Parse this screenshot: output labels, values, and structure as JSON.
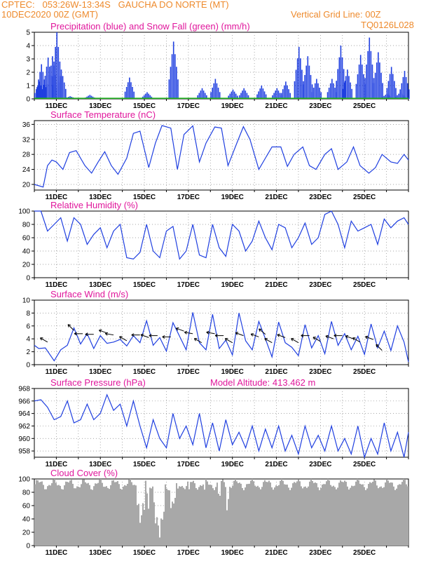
{
  "header": {
    "line1_left": "CPTEC:   053:26W-13:34S   GAUCHA DO NORTE (MT)",
    "line2_left": "10DEC2020 00Z (GMT)",
    "line2_right": "Vertical Grid Line: 00Z",
    "line3_right": "TQ0126L028"
  },
  "chart_data": [
    {
      "type": "bar",
      "title": "Precipitation (blue) and Snow Fall (green) (mm/h)",
      "ylim": [
        0,
        5
      ],
      "yticks": [
        "0",
        "1",
        "2",
        "3",
        "4",
        "5"
      ],
      "xticks": [
        "11DEC",
        "13DEC",
        "15DEC",
        "17DEC",
        "19DEC",
        "21DEC",
        "23DEC",
        "25DEC"
      ],
      "series": [
        {
          "name": "Precipitation",
          "color": "#1f3fe0",
          "bursts": [
            [
              0.2,
              1.3
            ],
            [
              0.3,
              2.6
            ],
            [
              0.6,
              3.1
            ],
            [
              0.8,
              3.2
            ],
            [
              1.0,
              5.0
            ],
            [
              1.2,
              2.2
            ],
            [
              1.6,
              0.2
            ],
            [
              2.5,
              0.3
            ],
            [
              4.3,
              1.6
            ],
            [
              5.1,
              0.5
            ],
            [
              6.3,
              4.3
            ],
            [
              7.6,
              0.8
            ],
            [
              8.2,
              1.5
            ],
            [
              9.0,
              0.7
            ],
            [
              9.5,
              0.8
            ],
            [
              10.3,
              1.0
            ],
            [
              11.0,
              0.8
            ],
            [
              11.4,
              1.3
            ],
            [
              12.0,
              3.9
            ],
            [
              12.4,
              3.2
            ],
            [
              12.8,
              1.5
            ],
            [
              13.5,
              1.5
            ],
            [
              13.9,
              4.0
            ],
            [
              14.2,
              2.2
            ],
            [
              14.8,
              3.3
            ],
            [
              15.2,
              4.6
            ],
            [
              15.6,
              3.5
            ],
            [
              16.0,
              0.4
            ],
            [
              16.2,
              2.4
            ],
            [
              16.6,
              0.5
            ],
            [
              16.8,
              2.1
            ]
          ]
        },
        {
          "name": "Snow Fall",
          "color": "#22b022",
          "values": [
            0
          ]
        }
      ]
    },
    {
      "type": "line",
      "title": "Surface Temperature (nC)",
      "ylim": [
        18.5,
        37
      ],
      "yticks": [
        "20",
        "24",
        "28",
        "32",
        "36"
      ],
      "xticks": [
        "11DEC",
        "13DEC",
        "15DEC",
        "17DEC",
        "19DEC",
        "21DEC",
        "23DEC",
        "25DEC"
      ],
      "series": [
        {
          "name": "Temperature",
          "color": "#1f3fe0",
          "x": [
            0,
            0.4,
            0.6,
            0.8,
            1.0,
            1.3,
            1.6,
            1.9,
            2.3,
            2.6,
            2.9,
            3.2,
            3.5,
            3.8,
            4.2,
            4.5,
            4.8,
            5.2,
            5.5,
            5.8,
            6.2,
            6.5,
            6.8,
            7.2,
            7.5,
            7.8,
            8.2,
            8.5,
            8.8,
            9.2,
            9.5,
            9.8,
            10.2,
            10.5,
            10.8,
            11.2,
            11.5,
            11.8,
            12.2,
            12.5,
            12.8,
            13.2,
            13.5,
            13.8,
            14.2,
            14.5,
            14.8,
            15.2,
            15.5,
            15.8,
            16.2,
            16.5,
            16.8,
            17.0
          ],
          "y": [
            20,
            19.3,
            25,
            26.5,
            26,
            24,
            28.5,
            29,
            25,
            23,
            26,
            28.7,
            25,
            22.7,
            27,
            33.6,
            34.2,
            24.5,
            31,
            35.7,
            35,
            24,
            33.3,
            35.6,
            26,
            31,
            35.3,
            35,
            25,
            31,
            35.4,
            32,
            24,
            27,
            30,
            30,
            24.8,
            28,
            30,
            25,
            24,
            28,
            29.5,
            24,
            26,
            30,
            25,
            23,
            24.5,
            28,
            26,
            25.6,
            28,
            26.5
          ]
        }
      ]
    },
    {
      "type": "line",
      "title": "Relative Humidity (%)",
      "ylim": [
        0,
        100
      ],
      "yticks": [
        "0",
        "20",
        "40",
        "60",
        "80",
        "100"
      ],
      "xticks": [
        "11DEC",
        "13DEC",
        "15DEC",
        "17DEC",
        "19DEC",
        "21DEC",
        "23DEC",
        "25DEC"
      ],
      "series": [
        {
          "name": "Humidity",
          "color": "#1f3fe0",
          "x": [
            0,
            0.3,
            0.6,
            0.9,
            1.2,
            1.5,
            1.8,
            2.1,
            2.4,
            2.7,
            3.0,
            3.3,
            3.6,
            3.9,
            4.2,
            4.5,
            4.8,
            5.1,
            5.4,
            5.7,
            6.0,
            6.3,
            6.6,
            6.9,
            7.2,
            7.5,
            7.8,
            8.1,
            8.4,
            8.7,
            9.0,
            9.3,
            9.6,
            9.9,
            10.2,
            10.5,
            10.8,
            11.1,
            11.4,
            11.7,
            12.0,
            12.3,
            12.6,
            12.9,
            13.2,
            13.5,
            13.8,
            14.1,
            14.4,
            14.7,
            15.0,
            15.3,
            15.6,
            15.9,
            16.2,
            16.5,
            16.8,
            17.0
          ],
          "y": [
            100,
            100,
            70,
            80,
            90,
            55,
            90,
            80,
            50,
            65,
            75,
            45,
            70,
            80,
            30,
            28,
            38,
            80,
            40,
            30,
            70,
            77,
            28,
            40,
            80,
            34,
            30,
            80,
            45,
            32,
            80,
            70,
            40,
            55,
            85,
            60,
            42,
            80,
            75,
            45,
            60,
            82,
            50,
            60,
            95,
            100,
            80,
            45,
            85,
            70,
            75,
            80,
            50,
            88,
            75,
            85,
            90,
            80
          ]
        }
      ]
    },
    {
      "type": "line",
      "title": "Surface Wind (m/s)",
      "ylim": [
        0,
        10
      ],
      "yticks": [
        "0",
        "2",
        "4",
        "6",
        "8",
        "10"
      ],
      "xticks": [
        "11DEC",
        "13DEC",
        "15DEC",
        "17DEC",
        "19DEC",
        "21DEC",
        "23DEC",
        "25DEC"
      ],
      "series": [
        {
          "name": "Wind speed",
          "color": "#1f3fe0",
          "x": [
            0,
            0.2,
            0.5,
            0.9,
            1.2,
            1.5,
            1.8,
            2.1,
            2.4,
            2.7,
            3.0,
            3.3,
            3.6,
            3.9,
            4.2,
            4.5,
            4.8,
            5.1,
            5.4,
            5.7,
            6.0,
            6.3,
            6.6,
            6.9,
            7.2,
            7.5,
            7.8,
            8.1,
            8.4,
            8.7,
            9.0,
            9.3,
            9.6,
            9.9,
            10.2,
            10.5,
            10.8,
            11.1,
            11.4,
            11.7,
            12.0,
            12.3,
            12.6,
            12.9,
            13.2,
            13.5,
            13.8,
            14.1,
            14.4,
            14.7,
            15.0,
            15.3,
            15.6,
            15.9,
            16.2,
            16.5,
            16.8,
            17.0
          ],
          "y": [
            3,
            2.5,
            2.6,
            0.6,
            2.3,
            3,
            5.7,
            3.2,
            4.8,
            2.5,
            4.5,
            3.3,
            3.5,
            3.9,
            2.9,
            4.5,
            3.4,
            6.8,
            3,
            4.2,
            2.1,
            6.5,
            4.4,
            2.3,
            8.1,
            3.4,
            2.3,
            7.8,
            2.5,
            3.8,
            1.5,
            8,
            3.7,
            2.3,
            6.7,
            4,
            1.2,
            6.6,
            3.4,
            2.7,
            1.4,
            6.2,
            2.6,
            4.5,
            1.7,
            6.7,
            3,
            4.8,
            2.3,
            4.4,
            1.6,
            6.3,
            2.6,
            5.2,
            2.2,
            6,
            3.5,
            0.4
          ]
        }
      ],
      "arrows": [
        [
          0.6,
          3.5,
          210
        ],
        [
          1.8,
          5.3,
          225
        ],
        [
          2.2,
          4.8,
          180
        ],
        [
          2.7,
          4.7,
          180
        ],
        [
          3.3,
          4.9,
          200
        ],
        [
          3.6,
          4.6,
          190
        ],
        [
          4.2,
          3.7,
          210
        ],
        [
          4.8,
          4.6,
          180
        ],
        [
          5.2,
          4.2,
          200
        ],
        [
          5.6,
          4.5,
          180
        ],
        [
          6.2,
          4.3,
          180
        ],
        [
          6.8,
          5.2,
          200
        ],
        [
          7.2,
          4.8,
          190
        ],
        [
          7.6,
          3.4,
          210
        ],
        [
          8.2,
          4.8,
          190
        ],
        [
          8.6,
          4.5,
          180
        ],
        [
          9.0,
          3.4,
          210
        ],
        [
          9.5,
          4.5,
          200
        ],
        [
          10.2,
          4.3,
          200
        ],
        [
          10.5,
          4.7,
          220
        ],
        [
          10.8,
          3.4,
          210
        ],
        [
          11.4,
          4.2,
          200
        ],
        [
          12.0,
          3.4,
          210
        ],
        [
          12.5,
          4.5,
          180
        ],
        [
          13.0,
          3.6,
          210
        ],
        [
          13.6,
          4.0,
          200
        ],
        [
          14.0,
          4.5,
          180
        ],
        [
          14.5,
          4.0,
          200
        ],
        [
          14.8,
          3.5,
          210
        ],
        [
          15.4,
          3.9,
          200
        ],
        [
          15.8,
          2.2,
          225
        ]
      ]
    },
    {
      "type": "line",
      "title": "Surface Pressure (hPa)",
      "subtitle": "Model Altitude: 413.462  m",
      "ylim": [
        957,
        968
      ],
      "yticks": [
        "958",
        "960",
        "962",
        "964",
        "966",
        "968"
      ],
      "xticks": [
        "11DEC",
        "13DEC",
        "15DEC",
        "17DEC",
        "19DEC",
        "21DEC",
        "23DEC",
        "25DEC"
      ],
      "series": [
        {
          "name": "Pressure",
          "color": "#1f3fe0",
          "x": [
            0,
            0.3,
            0.6,
            0.9,
            1.2,
            1.5,
            1.8,
            2.1,
            2.4,
            2.7,
            3.0,
            3.3,
            3.6,
            3.9,
            4.2,
            4.5,
            4.8,
            5.1,
            5.4,
            5.7,
            6.0,
            6.3,
            6.6,
            6.9,
            7.2,
            7.5,
            7.8,
            8.1,
            8.4,
            8.7,
            9.0,
            9.3,
            9.6,
            9.9,
            10.2,
            10.5,
            10.8,
            11.1,
            11.4,
            11.7,
            12.0,
            12.3,
            12.6,
            12.9,
            13.2,
            13.5,
            13.8,
            14.1,
            14.4,
            14.7,
            15.0,
            15.3,
            15.6,
            15.9,
            16.2,
            16.5,
            16.8,
            17.0
          ],
          "y": [
            966,
            966.2,
            965,
            963,
            963.5,
            966,
            962.5,
            963,
            965.5,
            963,
            964,
            967,
            964.5,
            965.5,
            962,
            966,
            962,
            958.5,
            963,
            960,
            958.5,
            964,
            960,
            962,
            959,
            964,
            958.5,
            962.5,
            958,
            963,
            959,
            961,
            958.5,
            962,
            958,
            961.5,
            958.5,
            962,
            958,
            960.5,
            957.5,
            962,
            958.5,
            960.5,
            958,
            962,
            958,
            960,
            957.5,
            962,
            957,
            960,
            957.5,
            962.5,
            958,
            961,
            957,
            961
          ]
        }
      ]
    },
    {
      "type": "bar",
      "title": "Cloud Cover (%)",
      "ylim": [
        0,
        100
      ],
      "yticks": [
        "0",
        "20",
        "40",
        "60",
        "80",
        "100"
      ],
      "xticks": [
        "11DEC",
        "13DEC",
        "15DEC",
        "17DEC",
        "19DEC",
        "21DEC",
        "23DEC",
        "25DEC"
      ],
      "series": [
        {
          "name": "Cloud Cover",
          "color": "#a8a8a8",
          "dips": [
            [
              4.6,
              5.0,
              20
            ],
            [
              5.0,
              5.3,
              45
            ],
            [
              5.4,
              5.9,
              3
            ],
            [
              6.0,
              6.5,
              40
            ],
            [
              6.6,
              7.3,
              70
            ],
            [
              7.5,
              8.0,
              75
            ],
            [
              8.2,
              8.5,
              55
            ],
            [
              8.6,
              8.9,
              40
            ]
          ]
        }
      ]
    }
  ]
}
